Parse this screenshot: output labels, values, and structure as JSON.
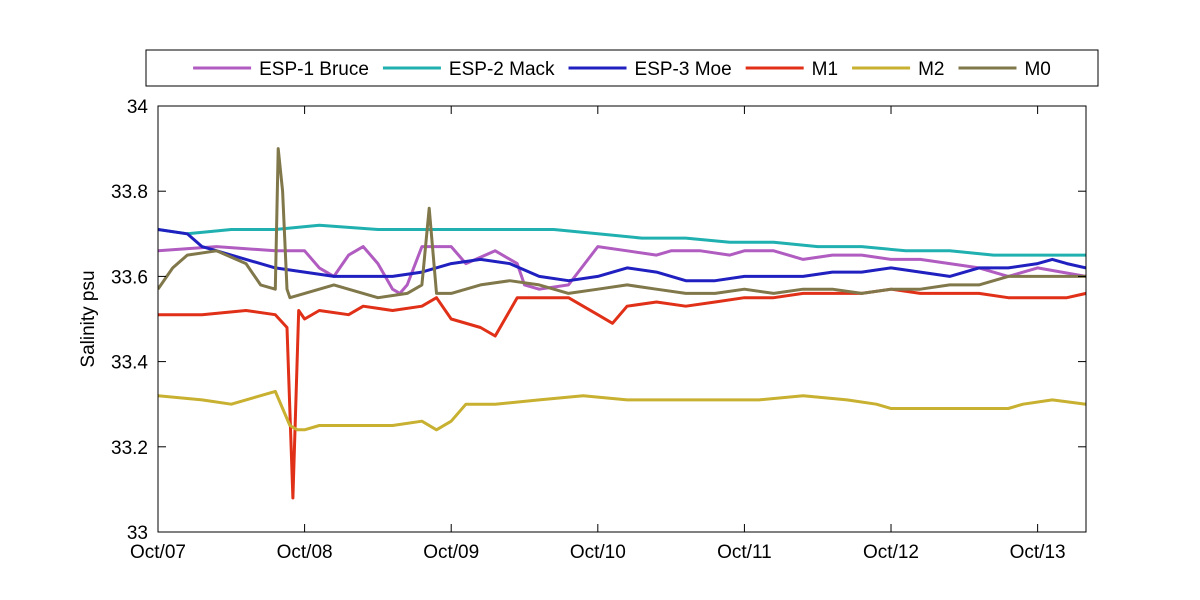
{
  "chart_data": {
    "type": "line",
    "title": "",
    "xlabel": "",
    "ylabel": "Salinity psu",
    "xlim": [
      0,
      6.33
    ],
    "ylim": [
      33,
      34
    ],
    "x_ticks": [
      0,
      1,
      2,
      3,
      4,
      5,
      6
    ],
    "x_tick_labels": [
      "Oct/07",
      "Oct/08",
      "Oct/09",
      "Oct/10",
      "Oct/11",
      "Oct/12",
      "Oct/13"
    ],
    "y_ticks": [
      33,
      33.2,
      33.4,
      33.6,
      33.8,
      34
    ],
    "y_tick_labels": [
      "33",
      "33.2",
      "33.4",
      "33.6",
      "33.8",
      "34"
    ],
    "grid": false,
    "legend_position": "top",
    "series": [
      {
        "name": "ESP-1 Bruce",
        "color": "#b05cc0",
        "x": [
          0,
          0.4,
          0.8,
          1.0,
          1.1,
          1.2,
          1.3,
          1.4,
          1.5,
          1.6,
          1.65,
          1.7,
          1.8,
          2.0,
          2.1,
          2.3,
          2.45,
          2.5,
          2.6,
          2.8,
          3.0,
          3.2,
          3.4,
          3.5,
          3.7,
          3.9,
          4.0,
          4.2,
          4.4,
          4.6,
          4.8,
          5.0,
          5.2,
          5.4,
          5.6,
          5.8,
          6.0,
          6.33
        ],
        "y": [
          33.66,
          33.67,
          33.66,
          33.66,
          33.62,
          33.6,
          33.65,
          33.67,
          33.63,
          33.57,
          33.56,
          33.58,
          33.67,
          33.67,
          33.63,
          33.66,
          33.63,
          33.58,
          33.57,
          33.58,
          33.67,
          33.66,
          33.65,
          33.66,
          33.66,
          33.65,
          33.66,
          33.66,
          33.64,
          33.65,
          33.65,
          33.64,
          33.64,
          33.63,
          33.62,
          33.6,
          33.62,
          33.6
        ]
      },
      {
        "name": "ESP-2 Mack",
        "color": "#20b0b0",
        "x": [
          0,
          0.2,
          0.5,
          0.8,
          1.1,
          1.5,
          1.8,
          2.1,
          2.4,
          2.7,
          3.0,
          3.3,
          3.6,
          3.9,
          4.2,
          4.5,
          4.8,
          5.1,
          5.4,
          5.7,
          6.0,
          6.33
        ],
        "y": [
          33.71,
          33.7,
          33.71,
          33.71,
          33.72,
          33.71,
          33.71,
          33.71,
          33.71,
          33.71,
          33.7,
          33.69,
          33.69,
          33.68,
          33.68,
          33.67,
          33.67,
          33.66,
          33.66,
          33.65,
          33.65,
          33.65
        ]
      },
      {
        "name": "ESP-3 Moe",
        "color": "#2020c0",
        "x": [
          0,
          0.2,
          0.3,
          0.4,
          0.6,
          0.8,
          1.0,
          1.2,
          1.4,
          1.6,
          1.8,
          2.0,
          2.2,
          2.4,
          2.6,
          2.8,
          3.0,
          3.2,
          3.4,
          3.6,
          3.8,
          4.0,
          4.2,
          4.4,
          4.6,
          4.8,
          5.0,
          5.2,
          5.4,
          5.6,
          5.8,
          6.0,
          6.1,
          6.2,
          6.33
        ],
        "y": [
          33.71,
          33.7,
          33.67,
          33.66,
          33.64,
          33.62,
          33.61,
          33.6,
          33.6,
          33.6,
          33.61,
          33.63,
          33.64,
          33.63,
          33.6,
          33.59,
          33.6,
          33.62,
          33.61,
          33.59,
          33.59,
          33.6,
          33.6,
          33.6,
          33.61,
          33.61,
          33.62,
          33.61,
          33.6,
          33.62,
          33.62,
          33.63,
          33.64,
          33.63,
          33.62
        ]
      },
      {
        "name": "M1",
        "color": "#e03018",
        "x": [
          0,
          0.3,
          0.6,
          0.8,
          0.88,
          0.92,
          0.96,
          1.0,
          1.1,
          1.3,
          1.4,
          1.6,
          1.8,
          1.9,
          2.0,
          2.2,
          2.3,
          2.45,
          2.6,
          2.8,
          3.0,
          3.1,
          3.2,
          3.4,
          3.6,
          3.8,
          4.0,
          4.2,
          4.4,
          4.6,
          4.8,
          5.0,
          5.2,
          5.4,
          5.6,
          5.8,
          6.0,
          6.2,
          6.33
        ],
        "y": [
          33.51,
          33.51,
          33.52,
          33.51,
          33.48,
          33.08,
          33.52,
          33.5,
          33.52,
          33.51,
          33.53,
          33.52,
          33.53,
          33.55,
          33.5,
          33.48,
          33.46,
          33.55,
          33.55,
          33.55,
          33.51,
          33.49,
          33.53,
          33.54,
          33.53,
          33.54,
          33.55,
          33.55,
          33.56,
          33.56,
          33.56,
          33.57,
          33.56,
          33.56,
          33.56,
          33.55,
          33.55,
          33.55,
          33.56
        ]
      },
      {
        "name": "M2",
        "color": "#c8b030",
        "x": [
          0,
          0.3,
          0.5,
          0.8,
          0.9,
          0.95,
          1.0,
          1.1,
          1.3,
          1.6,
          1.8,
          1.9,
          2.0,
          2.1,
          2.3,
          2.6,
          2.9,
          3.2,
          3.5,
          3.8,
          4.1,
          4.4,
          4.7,
          4.9,
          5.0,
          5.3,
          5.6,
          5.8,
          5.9,
          6.1,
          6.33
        ],
        "y": [
          33.32,
          33.31,
          33.3,
          33.33,
          33.25,
          33.24,
          33.24,
          33.25,
          33.25,
          33.25,
          33.26,
          33.24,
          33.26,
          33.3,
          33.3,
          33.31,
          33.32,
          33.31,
          33.31,
          33.31,
          33.31,
          33.32,
          33.31,
          33.3,
          33.29,
          33.29,
          33.29,
          33.29,
          33.3,
          33.31,
          33.3
        ]
      },
      {
        "name": "M0",
        "color": "#80784a",
        "x": [
          0,
          0.1,
          0.2,
          0.4,
          0.6,
          0.7,
          0.8,
          0.82,
          0.85,
          0.88,
          0.9,
          1.0,
          1.2,
          1.5,
          1.7,
          1.8,
          1.85,
          1.9,
          2.0,
          2.2,
          2.4,
          2.6,
          2.8,
          3.0,
          3.2,
          3.4,
          3.6,
          3.8,
          4.0,
          4.2,
          4.4,
          4.6,
          4.8,
          5.0,
          5.2,
          5.4,
          5.6,
          5.8,
          6.0,
          6.33
        ],
        "y": [
          33.57,
          33.62,
          33.65,
          33.66,
          33.63,
          33.58,
          33.57,
          33.9,
          33.8,
          33.57,
          33.55,
          33.56,
          33.58,
          33.55,
          33.56,
          33.58,
          33.76,
          33.56,
          33.56,
          33.58,
          33.59,
          33.58,
          33.56,
          33.57,
          33.58,
          33.57,
          33.56,
          33.56,
          33.57,
          33.56,
          33.57,
          33.57,
          33.56,
          33.57,
          33.57,
          33.58,
          33.58,
          33.6,
          33.6,
          33.6
        ]
      }
    ]
  }
}
